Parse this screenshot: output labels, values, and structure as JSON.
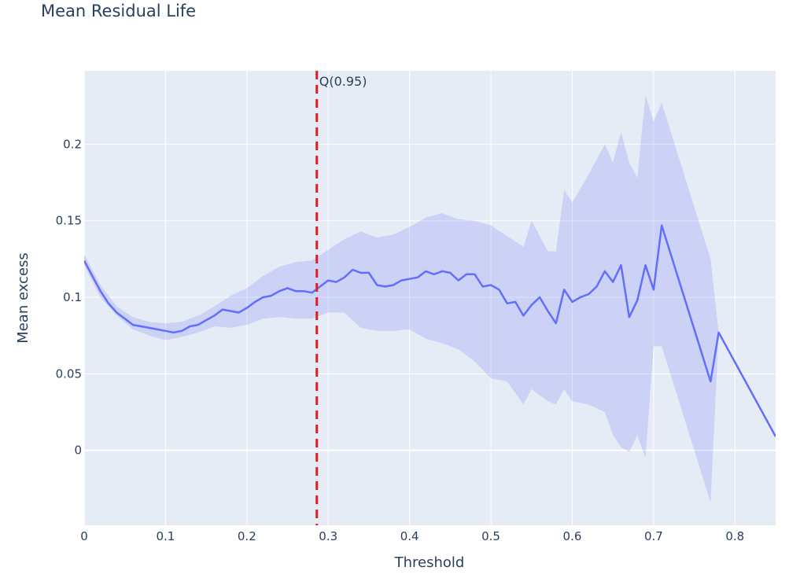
{
  "chart_data": {
    "type": "line",
    "title": "Mean Residual Life",
    "xlabel": "Threshold",
    "ylabel": "Mean excess",
    "xlim": [
      0,
      0.85
    ],
    "ylim": [
      -0.049,
      0.248
    ],
    "x_ticks": [
      0,
      0.1,
      0.2,
      0.3,
      0.4,
      0.5,
      0.6,
      0.7,
      0.8
    ],
    "x_tick_labels": [
      "0",
      "0.1",
      "0.2",
      "0.3",
      "0.4",
      "0.5",
      "0.6",
      "0.7",
      "0.8"
    ],
    "y_ticks": [
      0,
      0.05,
      0.1,
      0.15,
      0.2
    ],
    "y_tick_labels": [
      "0",
      "0.05",
      "0.1",
      "0.15",
      "0.2"
    ],
    "grid": true,
    "colors": {
      "plot_bg": "#e5ecf6",
      "grid": "#ffffff",
      "line": "#636efa",
      "band": "rgba(99,110,250,0.2)",
      "vline": "#e41a1c"
    },
    "series": [
      {
        "points": [
          [
            0,
            0.124
          ],
          [
            0.01,
            0.114
          ],
          [
            0.02,
            0.104
          ],
          [
            0.03,
            0.096
          ],
          [
            0.04,
            0.09
          ],
          [
            0.05,
            0.086
          ],
          [
            0.06,
            0.082
          ],
          [
            0.07,
            0.081
          ],
          [
            0.08,
            0.08
          ],
          [
            0.09,
            0.079
          ],
          [
            0.1,
            0.078
          ],
          [
            0.11,
            0.077
          ],
          [
            0.12,
            0.078
          ],
          [
            0.13,
            0.081
          ],
          [
            0.14,
            0.082
          ],
          [
            0.15,
            0.085
          ],
          [
            0.16,
            0.088
          ],
          [
            0.17,
            0.092
          ],
          [
            0.18,
            0.091
          ],
          [
            0.19,
            0.09
          ],
          [
            0.2,
            0.093
          ],
          [
            0.21,
            0.097
          ],
          [
            0.22,
            0.1
          ],
          [
            0.23,
            0.101
          ],
          [
            0.24,
            0.104
          ],
          [
            0.25,
            0.106
          ],
          [
            0.26,
            0.104
          ],
          [
            0.27,
            0.104
          ],
          [
            0.28,
            0.103
          ],
          [
            0.29,
            0.107
          ],
          [
            0.3,
            0.111
          ],
          [
            0.31,
            0.11
          ],
          [
            0.32,
            0.113
          ],
          [
            0.33,
            0.118
          ],
          [
            0.34,
            0.116
          ],
          [
            0.35,
            0.116
          ],
          [
            0.36,
            0.108
          ],
          [
            0.37,
            0.107
          ],
          [
            0.38,
            0.108
          ],
          [
            0.39,
            0.111
          ],
          [
            0.4,
            0.112
          ],
          [
            0.41,
            0.113
          ],
          [
            0.42,
            0.117
          ],
          [
            0.43,
            0.115
          ],
          [
            0.44,
            0.117
          ],
          [
            0.45,
            0.116
          ],
          [
            0.46,
            0.111
          ],
          [
            0.47,
            0.115
          ],
          [
            0.48,
            0.115
          ],
          [
            0.49,
            0.107
          ],
          [
            0.5,
            0.108
          ],
          [
            0.51,
            0.105
          ],
          [
            0.52,
            0.096
          ],
          [
            0.53,
            0.097
          ],
          [
            0.54,
            0.088
          ],
          [
            0.55,
            0.095
          ],
          [
            0.56,
            0.1
          ],
          [
            0.57,
            0.091
          ],
          [
            0.58,
            0.083
          ],
          [
            0.59,
            0.105
          ],
          [
            0.6,
            0.097
          ],
          [
            0.61,
            0.1
          ],
          [
            0.62,
            0.102
          ],
          [
            0.63,
            0.107
          ],
          [
            0.64,
            0.117
          ],
          [
            0.65,
            0.11
          ],
          [
            0.66,
            0.121
          ],
          [
            0.67,
            0.087
          ],
          [
            0.68,
            0.098
          ],
          [
            0.69,
            0.121
          ],
          [
            0.7,
            0.105
          ],
          [
            0.71,
            0.147
          ],
          [
            0.77,
            0.045
          ],
          [
            0.78,
            0.077
          ],
          [
            0.85,
            0.009
          ]
        ],
        "band_upper": [
          [
            0,
            0.128
          ],
          [
            0.02,
            0.108
          ],
          [
            0.04,
            0.094
          ],
          [
            0.06,
            0.087
          ],
          [
            0.08,
            0.084
          ],
          [
            0.1,
            0.083
          ],
          [
            0.12,
            0.084
          ],
          [
            0.14,
            0.088
          ],
          [
            0.16,
            0.094
          ],
          [
            0.18,
            0.101
          ],
          [
            0.2,
            0.106
          ],
          [
            0.22,
            0.114
          ],
          [
            0.24,
            0.12
          ],
          [
            0.26,
            0.123
          ],
          [
            0.28,
            0.124
          ],
          [
            0.3,
            0.131
          ],
          [
            0.32,
            0.138
          ],
          [
            0.34,
            0.143
          ],
          [
            0.36,
            0.139
          ],
          [
            0.38,
            0.141
          ],
          [
            0.4,
            0.146
          ],
          [
            0.42,
            0.152
          ],
          [
            0.44,
            0.155
          ],
          [
            0.46,
            0.151
          ],
          [
            0.48,
            0.15
          ],
          [
            0.5,
            0.147
          ],
          [
            0.52,
            0.14
          ],
          [
            0.54,
            0.133
          ],
          [
            0.55,
            0.15
          ],
          [
            0.57,
            0.13
          ],
          [
            0.58,
            0.13
          ],
          [
            0.59,
            0.17
          ],
          [
            0.6,
            0.162
          ],
          [
            0.62,
            0.18
          ],
          [
            0.64,
            0.2
          ],
          [
            0.65,
            0.188
          ],
          [
            0.66,
            0.208
          ],
          [
            0.67,
            0.188
          ],
          [
            0.68,
            0.178
          ],
          [
            0.69,
            0.232
          ],
          [
            0.7,
            0.215
          ],
          [
            0.71,
            0.227
          ],
          [
            0.77,
            0.125
          ],
          [
            0.78,
            0.077
          ]
        ],
        "band_lower": [
          [
            0,
            0.121
          ],
          [
            0.02,
            0.1
          ],
          [
            0.04,
            0.088
          ],
          [
            0.06,
            0.079
          ],
          [
            0.08,
            0.075
          ],
          [
            0.1,
            0.072
          ],
          [
            0.12,
            0.074
          ],
          [
            0.14,
            0.077
          ],
          [
            0.16,
            0.081
          ],
          [
            0.18,
            0.08
          ],
          [
            0.2,
            0.082
          ],
          [
            0.22,
            0.086
          ],
          [
            0.24,
            0.087
          ],
          [
            0.26,
            0.086
          ],
          [
            0.28,
            0.086
          ],
          [
            0.3,
            0.09
          ],
          [
            0.32,
            0.09
          ],
          [
            0.34,
            0.08
          ],
          [
            0.36,
            0.078
          ],
          [
            0.38,
            0.078
          ],
          [
            0.4,
            0.079
          ],
          [
            0.42,
            0.073
          ],
          [
            0.44,
            0.07
          ],
          [
            0.46,
            0.066
          ],
          [
            0.48,
            0.058
          ],
          [
            0.5,
            0.047
          ],
          [
            0.52,
            0.045
          ],
          [
            0.54,
            0.03
          ],
          [
            0.55,
            0.04
          ],
          [
            0.57,
            0.032
          ],
          [
            0.58,
            0.03
          ],
          [
            0.59,
            0.04
          ],
          [
            0.6,
            0.032
          ],
          [
            0.62,
            0.03
          ],
          [
            0.64,
            0.025
          ],
          [
            0.65,
            0.01
          ],
          [
            0.66,
            0.002
          ],
          [
            0.67,
            -0.001
          ],
          [
            0.68,
            0.01
          ],
          [
            0.69,
            -0.005
          ],
          [
            0.7,
            0.068
          ],
          [
            0.71,
            0.068
          ],
          [
            0.77,
            -0.034
          ],
          [
            0.78,
            0.077
          ]
        ]
      }
    ],
    "vline": {
      "x": 0.286,
      "label": "Q(0.95)",
      "style": "dashed"
    }
  }
}
